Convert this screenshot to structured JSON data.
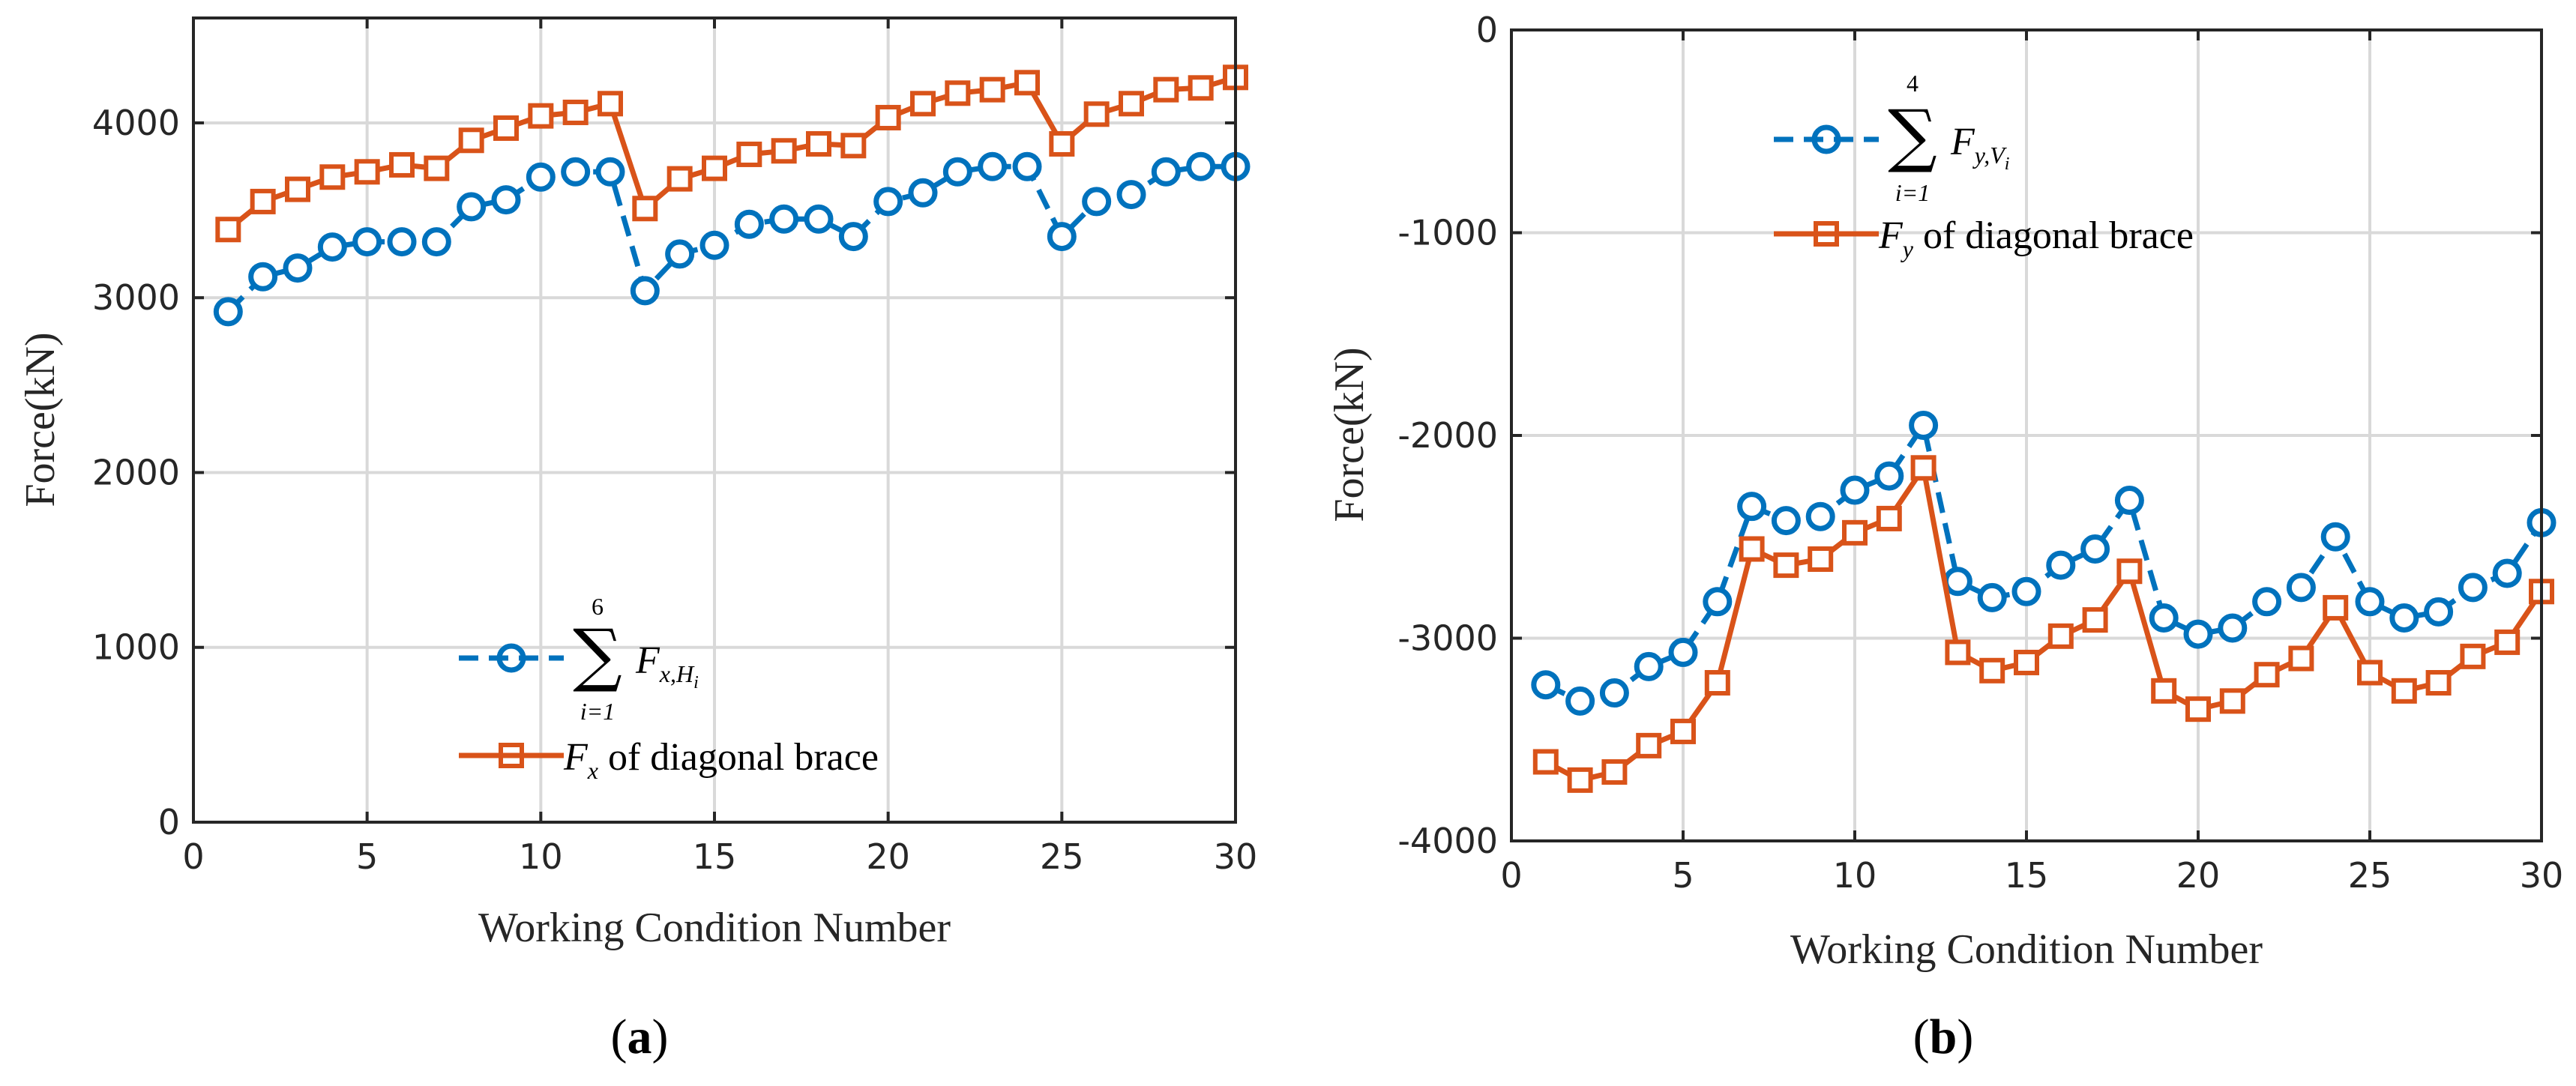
{
  "chart_data": [
    {
      "type": "line",
      "caption": "a",
      "xlabel": "Working Condition Number",
      "ylabel": "Force(kN)",
      "xlim": [
        0,
        30
      ],
      "ylim": [
        0,
        4600
      ],
      "xticks": [
        "0",
        "5",
        "10",
        "15",
        "20",
        "25",
        "30"
      ],
      "yticks": [
        "0",
        "1000",
        "2000",
        "3000",
        "4000"
      ],
      "grid": true,
      "legend_position": "bottom-center",
      "x": [
        1,
        2,
        3,
        4,
        5,
        6,
        7,
        8,
        9,
        10,
        11,
        12,
        13,
        14,
        15,
        16,
        17,
        18,
        19,
        20,
        21,
        22,
        23,
        24,
        25,
        26,
        27,
        28,
        29,
        30
      ],
      "series": [
        {
          "name": "sum_Fx_H",
          "legend": {
            "sigma": "∑",
            "sup": "6",
            "sub": "i=1",
            "term": "F",
            "term_sub": "x,H",
            "term_subsub": "i"
          },
          "color": "#0072BD",
          "marker": "circle",
          "dash": "dashed",
          "values": [
            2920,
            3120,
            3170,
            3290,
            3320,
            3320,
            3320,
            3520,
            3560,
            3690,
            3720,
            3720,
            3040,
            3250,
            3300,
            3420,
            3450,
            3450,
            3350,
            3550,
            3600,
            3720,
            3750,
            3750,
            3350,
            3550,
            3590,
            3720,
            3750,
            3750
          ]
        },
        {
          "name": "Fx_diagonal_brace",
          "legend": {
            "term": "F",
            "term_sub": "x",
            "text": " of diagonal brace"
          },
          "color": "#D95319",
          "marker": "square",
          "dash": "solid",
          "values": [
            3390,
            3550,
            3620,
            3690,
            3720,
            3760,
            3740,
            3900,
            3970,
            4040,
            4060,
            4110,
            3510,
            3680,
            3740,
            3820,
            3840,
            3880,
            3870,
            4030,
            4110,
            4170,
            4190,
            4230,
            3880,
            4050,
            4110,
            4190,
            4200,
            4260
          ]
        }
      ]
    },
    {
      "type": "line",
      "caption": "b",
      "xlabel": "Working Condition Number",
      "ylabel": "Force(kN)",
      "xlim": [
        0,
        30
      ],
      "ylim": [
        -4000,
        0
      ],
      "xticks": [
        "0",
        "5",
        "10",
        "15",
        "20",
        "25",
        "30"
      ],
      "yticks": [
        "0",
        "-1000",
        "-2000",
        "-3000",
        "-4000"
      ],
      "grid": true,
      "legend_position": "top-center",
      "x": [
        1,
        2,
        3,
        4,
        5,
        6,
        7,
        8,
        9,
        10,
        11,
        12,
        13,
        14,
        15,
        16,
        17,
        18,
        19,
        20,
        21,
        22,
        23,
        24,
        25,
        26,
        27,
        28,
        29,
        30
      ],
      "series": [
        {
          "name": "sum_Fy_V",
          "legend": {
            "sigma": "∑",
            "sup": "4",
            "sub": "i=1",
            "term": "F",
            "term_sub": "y,V",
            "term_subsub": "i"
          },
          "color": "#0072BD",
          "marker": "circle",
          "dash": "dashed",
          "values": [
            -3230,
            -3310,
            -3270,
            -3140,
            -3070,
            -2820,
            -2350,
            -2420,
            -2400,
            -2270,
            -2200,
            -1950,
            -2720,
            -2800,
            -2770,
            -2640,
            -2560,
            -2320,
            -2900,
            -2980,
            -2950,
            -2820,
            -2750,
            -2500,
            -2820,
            -2900,
            -2870,
            -2750,
            -2680,
            -2430
          ]
        },
        {
          "name": "Fy_diagonal_brace",
          "legend": {
            "term": "F",
            "term_sub": "y",
            "text": " of diagonal brace"
          },
          "color": "#D95319",
          "marker": "square",
          "dash": "solid",
          "values": [
            -3610,
            -3700,
            -3660,
            -3530,
            -3460,
            -3220,
            -2560,
            -2640,
            -2610,
            -2480,
            -2410,
            -2160,
            -3070,
            -3160,
            -3120,
            -2990,
            -2910,
            -2670,
            -3260,
            -3350,
            -3310,
            -3180,
            -3100,
            -2850,
            -3170,
            -3260,
            -3220,
            -3090,
            -3020,
            -2770
          ]
        }
      ]
    }
  ]
}
